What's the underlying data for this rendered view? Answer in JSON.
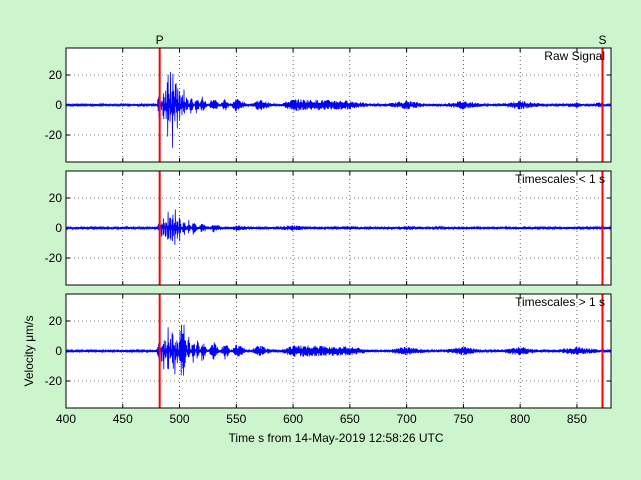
{
  "chart_data": {
    "type": "line",
    "xlabel": "Time s from 14-May-2019 12:58:26 UTC",
    "ylabel": "Velocity μm/s",
    "xlim": [
      400,
      880
    ],
    "x_ticks": [
      "400",
      "450",
      "500",
      "550",
      "600",
      "650",
      "700",
      "750",
      "800",
      "850"
    ],
    "grid": true,
    "line_color": "#0000ff",
    "marker_color": "#ff0000",
    "phase_markers": [
      {
        "label": "P",
        "x": 482.5
      },
      {
        "label": "S",
        "x": 872.5
      }
    ],
    "panels": [
      {
        "label": "Raw Signal",
        "ylim": [
          -38,
          38
        ],
        "y_ticks": [
          "20",
          "0",
          "-20"
        ],
        "series": {
          "x": [
            400,
            470,
            480,
            482.5,
            484,
            486,
            488,
            490,
            492,
            494,
            495,
            496,
            497,
            498,
            500,
            502,
            504,
            506,
            510,
            515,
            520,
            530,
            540,
            550,
            570,
            600,
            650,
            700,
            750,
            800,
            850,
            870,
            880
          ],
          "y": [
            0,
            0,
            1,
            12,
            -8,
            18,
            -15,
            34,
            -24,
            36,
            -20,
            30,
            -22,
            22,
            -16,
            14,
            -12,
            10,
            -9,
            8,
            -6,
            6,
            -5,
            5,
            -4,
            4,
            3,
            -3,
            3,
            -3,
            2,
            -2,
            0
          ]
        }
      },
      {
        "label": "Timescales < 1 s",
        "ylim": [
          -38,
          38
        ],
        "y_ticks": [
          "20",
          "0",
          "-20"
        ],
        "series": {
          "x": [
            400,
            470,
            480,
            482.5,
            484,
            486,
            488,
            490,
            492,
            494,
            496,
            498,
            500,
            504,
            508,
            512,
            520,
            530,
            550,
            600,
            650,
            700,
            750,
            800,
            850,
            880
          ],
          "y": [
            0,
            0,
            0,
            6,
            -6,
            10,
            -12,
            14,
            -19,
            18,
            -16,
            12,
            -10,
            8,
            -6,
            5,
            -4,
            3,
            -2,
            2,
            -1.5,
            1.5,
            -1,
            1,
            -1,
            0
          ]
        }
      },
      {
        "label": "Timescales > 1 s",
        "ylim": [
          -38,
          38
        ],
        "y_ticks": [
          "20",
          "0",
          "-20"
        ],
        "series": {
          "x": [
            400,
            470,
            480,
            482.5,
            484,
            486,
            488,
            490,
            492,
            494,
            496,
            498,
            500,
            504,
            508,
            512,
            516,
            520,
            530,
            540,
            550,
            570,
            600,
            650,
            700,
            750,
            800,
            850,
            880
          ],
          "y": [
            0,
            0,
            1,
            10,
            -8,
            14,
            -12,
            20,
            -18,
            26,
            -18,
            16,
            -14,
            -22,
            12,
            -10,
            9,
            -8,
            7,
            -6,
            5,
            -4,
            4,
            3,
            -3,
            3,
            -3,
            3,
            0
          ]
        }
      }
    ]
  }
}
